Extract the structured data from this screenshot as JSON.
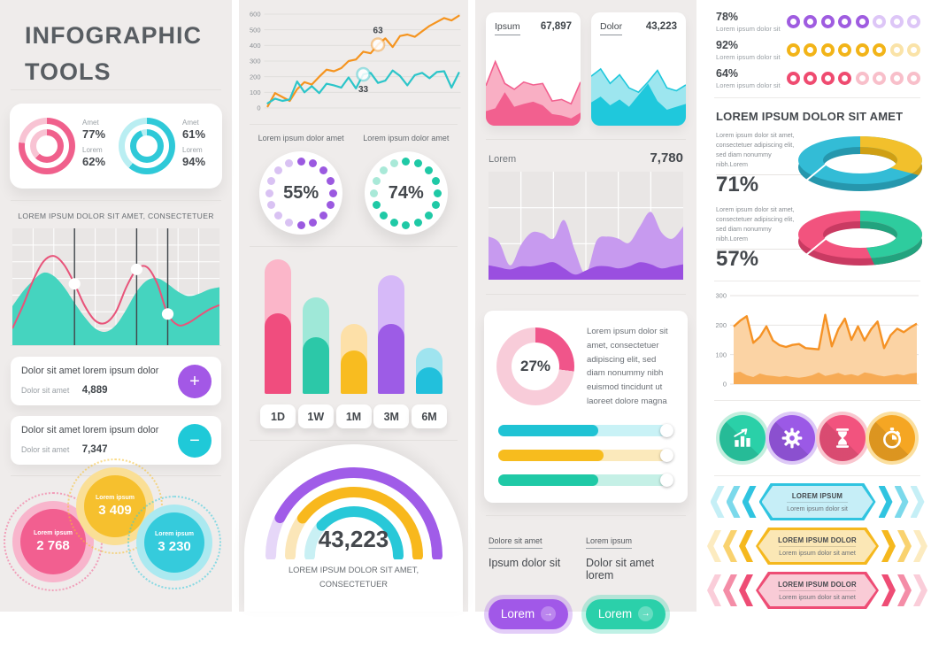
{
  "brand": {
    "title_line1": "INFOGRAPHIC",
    "title_line2": "TOOLS"
  },
  "col1": {
    "ring_card": {
      "groups": [
        {
          "color": "#f0608c",
          "light": "#f8c3d3",
          "outer_pct": 77,
          "inner_pct": 62,
          "stats": [
            {
              "label": "Amet",
              "value": "77%"
            },
            {
              "label": "Lorem",
              "value": "62%"
            }
          ]
        },
        {
          "color": "#2fc9d8",
          "light": "#b9eef2",
          "outer_pct": 61,
          "inner_pct": 94,
          "stats": [
            {
              "label": "Amet",
              "value": "61%"
            },
            {
              "label": "Lorem",
              "value": "94%"
            }
          ]
        }
      ]
    },
    "wave_heading": "LOREM IPSUM DOLOR SIT AMET, CONSECTETUER",
    "stat_cards": [
      {
        "title": "Dolor sit amet lorem ipsum dolor",
        "label": "Dolor sit amet",
        "value": "4,889",
        "action": "+",
        "color": "#a358e6"
      },
      {
        "title": "Dolor sit amet lorem ipsum dolor",
        "label": "Dolor sit amet",
        "value": "7,347",
        "action": "−",
        "color": "#1fc9d8"
      }
    ],
    "bubbles": [
      {
        "label": "Lorem ipsum",
        "value": "2 768",
        "color": "#f25f90",
        "light": "#f8b5cc"
      },
      {
        "label": "Lorem ipsum",
        "value": "3 409",
        "color": "#f6c02e",
        "light": "#fadf96"
      },
      {
        "label": "Lorem ipsum",
        "value": "3 230",
        "color": "#35cbdc",
        "light": "#abe9f0"
      }
    ]
  },
  "col2": {
    "dotted_donuts": [
      {
        "heading": "Lorem ipsum dolor amet",
        "value": "55%",
        "pct": 55,
        "color": "#9b59e0",
        "light": "#d9c2f3"
      },
      {
        "heading": "Lorem ipsum dolor amet",
        "value": "74%",
        "pct": 74,
        "color": "#1fc9a6",
        "light": "#a9e9d8"
      }
    ],
    "gauge": {
      "value": "43,223",
      "caption1": "LOREM IPSUM DOLOR SIT AMET,",
      "caption2": "CONSECTETUER"
    }
  },
  "col3": {
    "mini_cards": [
      {
        "label": "Ipsum",
        "value": "67,897"
      },
      {
        "label": "Dolor",
        "value": "43,223"
      }
    ],
    "area_label": "Lorem",
    "area_value": "7,780",
    "donut_value": "27%",
    "donut_text": "Lorem ipsum dolor sit amet, consectetuer adipiscing elit, sed diam nonummy nibh euismod tincidunt ut laoreet dolore magna",
    "links": [
      {
        "label": "Dolore sit amet",
        "text": "Ipsum dolor sit"
      },
      {
        "label": "Lorem ipsum",
        "text": "Dolor sit amet lorem"
      }
    ],
    "buttons": [
      {
        "label": "Lorem",
        "arrow": "→",
        "color": "#a158e8"
      },
      {
        "label": "Lorem",
        "arrow": "→",
        "color": "#2bd0aa"
      }
    ]
  },
  "col4": {
    "dot_rows": [
      {
        "value": "78%",
        "label": "Lorem ipsum dolor sit",
        "filled": 5,
        "total": 8,
        "color": "#9f5ce0",
        "light": "#ddc6f7"
      },
      {
        "value": "92%",
        "label": "Lorem ipsum dolor sit",
        "filled": 6,
        "total": 8,
        "color": "#f2b418",
        "light": "#fae3a8"
      },
      {
        "value": "64%",
        "label": "Lorem ipsum dolor sit",
        "filled": 4,
        "total": 8,
        "color": "#ef4b70",
        "light": "#f8bfca"
      }
    ],
    "heading": "LOREM IPSUM DOLOR SIT AMET",
    "donuts3d": [
      {
        "text": "Lorem ipsum dolor sit amet, consectetuer adipiscing elit, sed diam nonummy nibh.Lorem",
        "value": "71%",
        "main": "#33bcd6",
        "main_dark": "#2697ad",
        "segment": "#f2c02c",
        "segment_dark": "#cf9f14",
        "segment_pct": 0.29
      },
      {
        "text": "Lorem ipsum dolor sit amet, consectetuer adipiscing elit, sed diam nonummy nibh.Lorem",
        "value": "57%",
        "main": "#f2537e",
        "main_dark": "#c93a62",
        "segment": "#2ecc9e",
        "segment_dark": "#22a37e",
        "segment_pct": 0.43
      }
    ],
    "icons": [
      {
        "name": "bar-chart",
        "color": "#2ad0a8",
        "ring": "#c2eedd"
      },
      {
        "name": "gear",
        "color": "#9b59e6",
        "ring": "#ddc9f6"
      },
      {
        "name": "hourglass",
        "color": "#f2537e",
        "ring": "#f9c6cf"
      },
      {
        "name": "stopwatch",
        "color": "#f5a623",
        "ring": "#fbdf9f"
      }
    ],
    "banners": [
      {
        "title": "LOREM IPSUM",
        "subtitle": "Lorem ipsum dolor sit",
        "color": "#30c4e0",
        "fill": "#c6eef7"
      },
      {
        "title": "LOREM IPSUM DOLOR",
        "subtitle": "Lorem ipsum dolor sit amet",
        "color": "#f5b81e",
        "fill": "#fbe7b5"
      },
      {
        "title": "LOREM IPSUM DOLOR",
        "subtitle": "Lorem ipsum dolor sit amet",
        "color": "#ee4d75",
        "fill": "#f9cbd6"
      }
    ]
  },
  "chart_data": {
    "ring_donuts": {
      "type": "pie",
      "items": [
        {
          "labels": [
            "Amet",
            "Lorem"
          ],
          "values": [
            77,
            62
          ]
        },
        {
          "labels": [
            "Amet",
            "Lorem"
          ],
          "values": [
            61,
            94
          ]
        }
      ]
    },
    "wave": {
      "type": "area",
      "title": "LOREM IPSUM DOLOR SIT AMET, CONSECTETUER",
      "ylim": [
        0,
        100
      ],
      "grid": true,
      "area": {
        "name": "teal-area",
        "color": "#45d4bf",
        "values": [
          35,
          48,
          58,
          65,
          62,
          52,
          38,
          25,
          15,
          12,
          18,
          32,
          48,
          58,
          60,
          55,
          48,
          44,
          46,
          50,
          52
        ]
      },
      "line": {
        "name": "pink-line",
        "color": "#e8547a",
        "values": [
          15,
          35,
          58,
          75,
          80,
          72,
          55,
          35,
          22,
          20,
          30,
          52,
          68,
          70,
          55,
          28,
          18,
          20,
          26,
          32,
          36
        ]
      },
      "marker_indices": [
        6,
        12,
        15
      ]
    },
    "trend": {
      "type": "line",
      "ylim": [
        0,
        600
      ],
      "yticks": [
        600,
        500,
        400,
        300,
        200,
        100,
        0
      ],
      "grid": true,
      "series": [
        {
          "name": "orange",
          "color": "#f5941f",
          "values": [
            10,
            95,
            70,
            45,
            120,
            165,
            150,
            200,
            245,
            235,
            255,
            300,
            310,
            360,
            350,
            405,
            445,
            390,
            460,
            470,
            455,
            490,
            525,
            550,
            575,
            560,
            590
          ],
          "marker_index": 15,
          "marker_label": "63",
          "label_below": false
        },
        {
          "name": "teal",
          "color": "#2cc5c9",
          "values": [
            30,
            60,
            45,
            55,
            170,
            100,
            140,
            95,
            155,
            145,
            130,
            195,
            125,
            215,
            225,
            160,
            175,
            240,
            205,
            145,
            210,
            225,
            190,
            230,
            235,
            130,
            225
          ],
          "marker_index": 13,
          "marker_label": "33",
          "label_below": true
        }
      ]
    },
    "bars": {
      "type": "bar",
      "categories": [
        "1D",
        "1W",
        "1M",
        "3M",
        "6M"
      ],
      "series": [
        {
          "name": "outer",
          "values": [
            100,
            72,
            52,
            88,
            34
          ]
        },
        {
          "name": "inner",
          "values": [
            60,
            42,
            32,
            52,
            20
          ]
        }
      ],
      "colors_light": [
        "#fbb6c9",
        "#9fe8d8",
        "#fde0a8",
        "#d6b9f8",
        "#9fe4ef"
      ],
      "colors_dark": [
        "#f04d7e",
        "#2cc8a8",
        "#f8bc20",
        "#9d5ce6",
        "#22c0dc"
      ],
      "ylim": [
        0,
        100
      ]
    },
    "gauge": {
      "type": "gauge",
      "value": 43223,
      "arcs": [
        {
          "pct": 85,
          "color": "#a05ce8",
          "track": "#e6d7f8"
        },
        {
          "pct": 80,
          "color": "#f8b81d",
          "track": "#fbe6b8"
        },
        {
          "pct": 76,
          "color": "#28c8d8",
          "track": "#c9f0f4"
        }
      ]
    },
    "mini_areas": [
      {
        "name": "Ipsum",
        "value": 67897,
        "colors": [
          "#f9afc4",
          "#f2608f"
        ],
        "light_values": [
          55,
          88,
          58,
          50,
          60,
          56,
          58,
          34,
          36,
          30,
          60
        ],
        "dark_values": [
          20,
          24,
          46,
          26,
          30,
          33,
          28,
          16,
          14,
          10,
          18
        ]
      },
      {
        "name": "Dolor",
        "value": 43223,
        "colors": [
          "#9de6ef",
          "#1fc8dc"
        ],
        "light_values": [
          68,
          78,
          58,
          70,
          52,
          46,
          60,
          76,
          52,
          48,
          56
        ],
        "dark_values": [
          32,
          40,
          28,
          36,
          26,
          42,
          58,
          34,
          22,
          26,
          30
        ]
      }
    ],
    "purple_area": {
      "type": "area",
      "name": "Lorem",
      "value": 7780,
      "colors": [
        "#c79aef",
        "#9a4fe0"
      ],
      "ylim": [
        0,
        100
      ],
      "light_values": [
        42,
        36,
        14,
        34,
        46,
        45,
        40,
        58,
        28,
        6,
        38,
        42,
        40,
        36,
        52,
        66,
        46,
        40,
        52
      ],
      "dark_values": [
        14,
        12,
        10,
        13,
        13,
        15,
        17,
        11,
        5,
        9,
        13,
        13,
        11,
        13,
        17,
        15,
        11,
        13,
        15
      ]
    },
    "donut27": {
      "type": "pie",
      "values": [
        27,
        73
      ],
      "colors": [
        "#f0558a",
        "#f8ccd9"
      ]
    },
    "progress_bars": {
      "type": "bar",
      "values": [
        57,
        60,
        57
      ],
      "colors": [
        "#1fc3d4",
        "#f7bc1e",
        "#1fc9a6"
      ],
      "tracks": [
        "#c9f2f6",
        "#fbe9bb",
        "#c5f0e6"
      ]
    },
    "dot_progress": {
      "type": "bar",
      "values": [
        78,
        92,
        64
      ],
      "dots_total": 8,
      "dots_filled": [
        5,
        6,
        4
      ]
    },
    "donuts_3d": {
      "type": "pie",
      "items": [
        {
          "value": 71,
          "segments": [
            71,
            29
          ]
        },
        {
          "value": 57,
          "segments": [
            57,
            43
          ]
        }
      ]
    },
    "dotted_donuts": {
      "type": "pie",
      "values": [
        55,
        74
      ],
      "dots_total": 16
    },
    "orange_area": {
      "type": "area",
      "ylim": [
        0,
        300
      ],
      "yticks": [
        300,
        200,
        100,
        0
      ],
      "colors": {
        "line": "#f59225",
        "fill": "#fbd3a4",
        "band": "#f7ab55"
      },
      "values": [
        195,
        215,
        230,
        140,
        160,
        196,
        148,
        132,
        126,
        133,
        136,
        122,
        120,
        118,
        235,
        128,
        186,
        222,
        150,
        196,
        148,
        186,
        212,
        122,
        166,
        188,
        176,
        192,
        205
      ],
      "band_values": [
        38,
        42,
        30,
        24,
        36,
        30,
        28,
        25,
        28,
        24,
        22,
        25,
        30,
        40,
        28,
        32,
        38,
        30,
        34,
        28,
        40,
        36,
        30,
        26,
        30,
        34,
        30,
        36,
        38
      ]
    },
    "bubbles": {
      "type": "pie",
      "labels": [
        "Lorem ipsum",
        "Lorem ipsum",
        "Lorem ipsum"
      ],
      "values": [
        2768,
        3409,
        3230
      ]
    }
  }
}
